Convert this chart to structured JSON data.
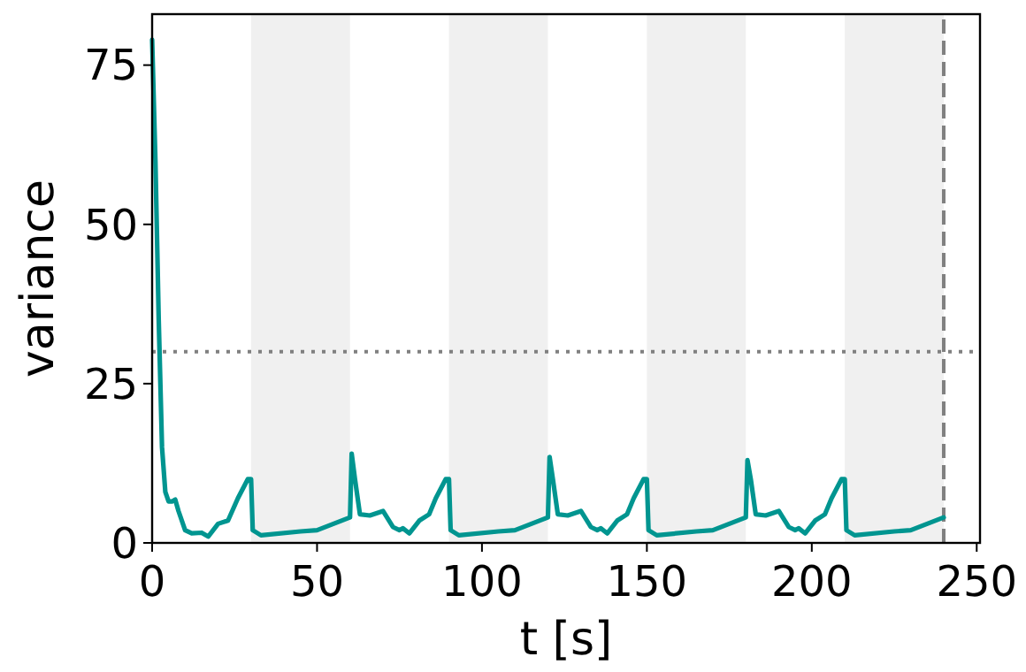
{
  "chart_data": {
    "type": "line",
    "xlabel": "t [s]",
    "ylabel": "variance",
    "xlim": [
      0,
      251
    ],
    "ylim": [
      0,
      83
    ],
    "xticks": [
      0,
      50,
      100,
      150,
      200,
      250
    ],
    "yticks": [
      0,
      25,
      50,
      75
    ],
    "grid": false,
    "marker": "none",
    "line_style": "solid",
    "series": [
      {
        "color": "#009590",
        "x": [
          0,
          1,
          2,
          3,
          4,
          5,
          6,
          7,
          8,
          10,
          12,
          15,
          17,
          20,
          23,
          26,
          29,
          30,
          30.5,
          33,
          45,
          50,
          55,
          60,
          60.5,
          61.5,
          63,
          66,
          70,
          73,
          75,
          76,
          78,
          81,
          84,
          86,
          89,
          90,
          90.5,
          93,
          105,
          110,
          115,
          120,
          120.5,
          121.5,
          123,
          126,
          130,
          133,
          135,
          136,
          138,
          141,
          144,
          146,
          149,
          150,
          150.5,
          153,
          165,
          170,
          175,
          180,
          180.5,
          181.5,
          183,
          186,
          190,
          193,
          195,
          196,
          198,
          201,
          204,
          206,
          209,
          210,
          210.5,
          213,
          225,
          230,
          235,
          240
        ],
        "values": [
          79,
          60,
          35,
          15,
          8,
          6.5,
          6.5,
          6.8,
          5,
          2,
          1.5,
          1.6,
          1,
          3,
          3.5,
          7,
          10,
          10,
          2,
          1.2,
          1.8,
          2,
          3,
          4,
          14,
          10,
          4.5,
          4.3,
          5,
          2.5,
          2,
          2.3,
          1.5,
          3.5,
          4.5,
          7,
          10,
          10,
          2,
          1.2,
          1.8,
          2,
          3,
          4,
          13.5,
          10,
          4.5,
          4.3,
          5,
          2.5,
          2,
          2.3,
          1.5,
          3.5,
          4.5,
          7,
          10,
          10,
          2,
          1.2,
          1.8,
          2,
          3,
          4,
          13,
          10,
          4.5,
          4.3,
          5,
          2.5,
          2,
          2.3,
          1.5,
          3.5,
          4.5,
          7,
          10,
          10,
          2,
          1.2,
          1.8,
          2,
          3,
          4
        ]
      }
    ],
    "ref_lines": [
      {
        "axis": "y",
        "value": 30,
        "color": "#808080",
        "line_style": "dotted"
      },
      {
        "axis": "x",
        "value": 240,
        "color": "#808080",
        "line_style": "dashed"
      }
    ],
    "bands": [
      {
        "axis": "x",
        "from": 30,
        "to": 60,
        "color": "#f0f0f0"
      },
      {
        "axis": "x",
        "from": 90,
        "to": 120,
        "color": "#f0f0f0"
      },
      {
        "axis": "x",
        "from": 150,
        "to": 180,
        "color": "#f0f0f0"
      },
      {
        "axis": "x",
        "from": 210,
        "to": 240,
        "color": "#f0f0f0"
      }
    ]
  }
}
